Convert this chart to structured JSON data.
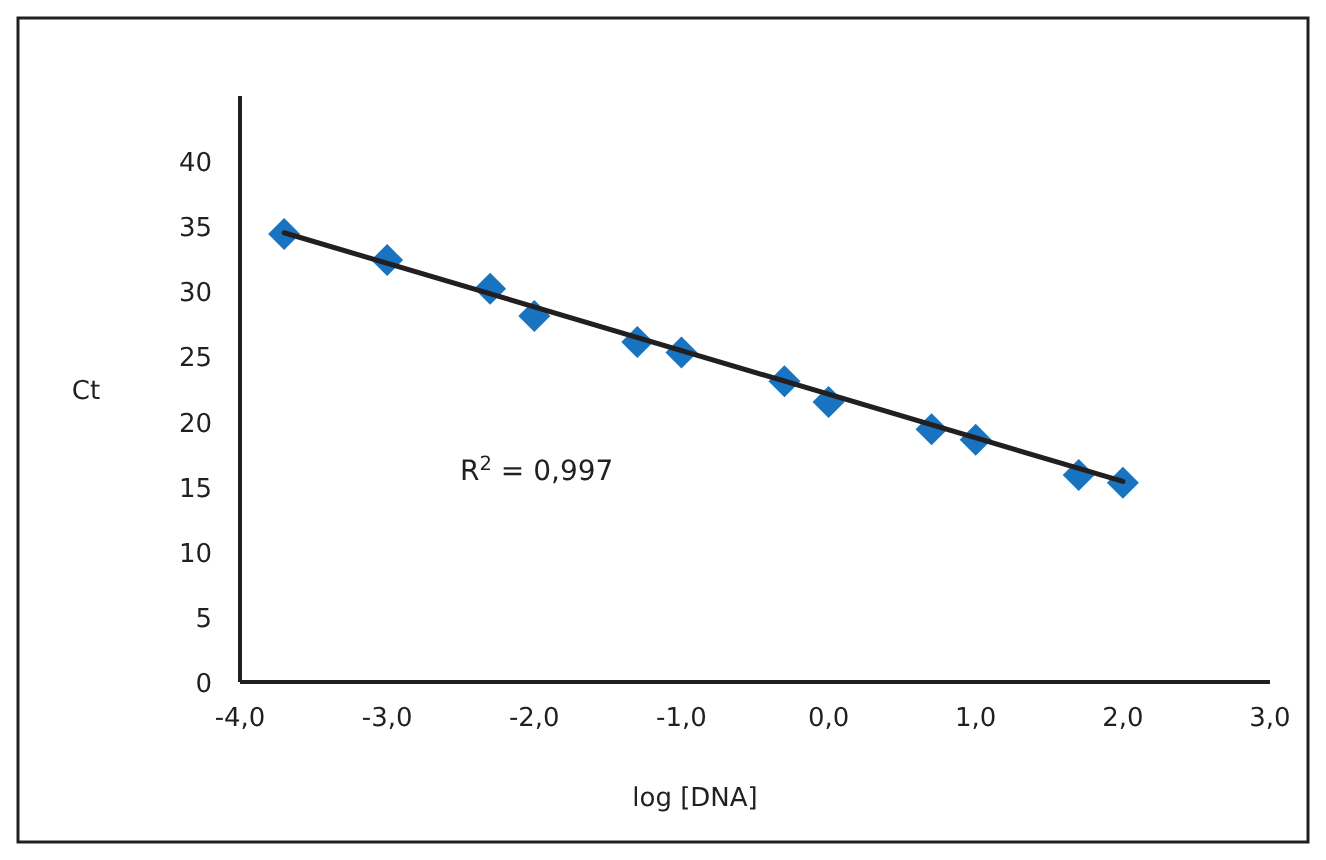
{
  "chart_data": {
    "type": "scatter",
    "xlabel": "log [DNA]",
    "ylabel": "Ct",
    "annotations": [
      "R$^{2}$ = 0,997"
    ],
    "xlim": [
      -4,
      3
    ],
    "xticks": [
      {
        "value": -4,
        "label": "-4,0"
      },
      {
        "value": -3,
        "label": "-3,0"
      },
      {
        "value": -2,
        "label": "-2,0"
      },
      {
        "value": -1,
        "label": "-1,0"
      },
      {
        "value": 0,
        "label": "0,0"
      },
      {
        "value": 1,
        "label": "1,0"
      },
      {
        "value": 2,
        "label": "2,0"
      },
      {
        "value": 3,
        "label": "3,0"
      }
    ],
    "ylim": [
      0,
      45
    ],
    "yticks": [
      0,
      5,
      10,
      15,
      20,
      25,
      30,
      35,
      40
    ],
    "grid": false,
    "marker": "diamond",
    "series": [
      {
        "color": "#1874c0",
        "x": [
          -3.7,
          -3.0,
          -2.3,
          -2.0,
          -1.3,
          -1.0,
          -0.3,
          0.0,
          0.7,
          1.0,
          1.7,
          2.0
        ],
        "values": [
          34.4,
          32.4,
          30.2,
          28.1,
          26.1,
          25.3,
          23.1,
          21.5,
          19.4,
          18.6,
          15.9,
          15.3
        ]
      },
      {
        "type": "line",
        "color": "#231f20",
        "line_style": "solid",
        "marker": "none",
        "x": [
          -3.7,
          2.0
        ],
        "values": [
          34.5,
          15.4
        ]
      }
    ]
  }
}
